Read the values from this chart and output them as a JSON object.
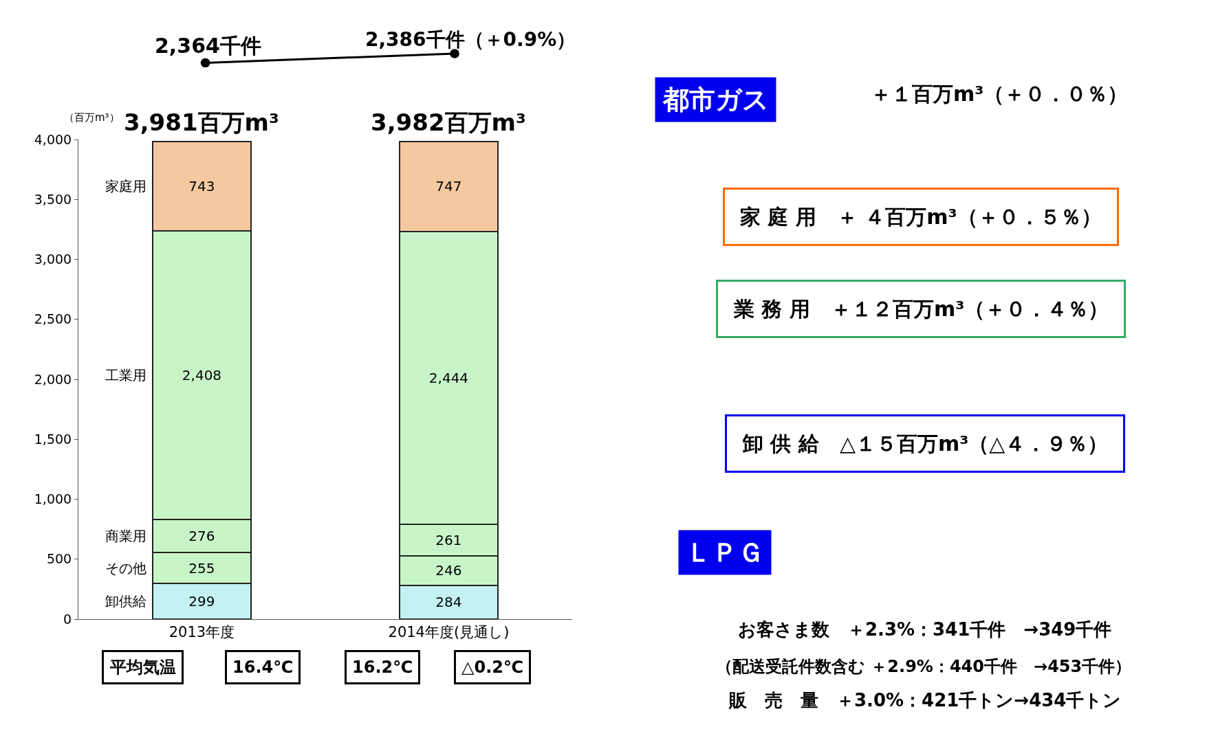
{
  "chart_data": {
    "type": "bar",
    "stacked": true,
    "categories": [
      "2013年度",
      "2014年度(見通し)"
    ],
    "series": [
      {
        "name": "卸供給",
        "color": "#c4f2f2",
        "values": [
          299,
          284
        ]
      },
      {
        "name": "その他",
        "color": "#c8f5c8",
        "values": [
          255,
          246
        ]
      },
      {
        "name": "商業用",
        "color": "#c8f5c8",
        "values": [
          276,
          261
        ]
      },
      {
        "name": "工業用",
        "color": "#c8f5c8",
        "values": [
          2408,
          2444
        ],
        "value_labels": [
          "2,408",
          "2,444"
        ]
      },
      {
        "name": "家庭用",
        "color": "#f5c9a0",
        "values": [
          743,
          747
        ]
      }
    ],
    "data_labels": true,
    "totals": [
      "3,981百万m³",
      "3,982百万m³"
    ],
    "ylabel": "（百万m³）",
    "ylim": [
      0,
      4000
    ],
    "yticks": [
      0,
      500,
      {
        "value": 1000,
        "label": "1,000"
      },
      {
        "value": 1500,
        "label": "1,500"
      },
      {
        "value": 2000,
        "label": "2,000"
      },
      {
        "value": 2500,
        "label": "2,500"
      },
      {
        "value": 3000,
        "label": "3,000"
      },
      {
        "value": 3500,
        "label": "3,500"
      },
      {
        "value": 4000,
        "label": "4,000"
      }
    ],
    "legend": false,
    "annotations": [
      "2,364千件",
      "2,386千件（＋0.9%）",
      "都市ガス",
      "＋１百万m³（＋０．０％）",
      "家 庭 用　＋ ４百万m³（＋０．５％）",
      "業 務 用　＋１２百万m³（＋０．４％）",
      "卸 供 給　△１５百万m³（△４．９％）",
      "ＬＰＧ",
      "お客さま数　＋2.3%：341千件　→349千件",
      "（配送受託件数含む ＋2.9%：440千件　→453千件）",
      "販　売　量　＋3.0%：421千トン→434千トン",
      "平均気温",
      "16.4℃",
      "16.2℃",
      "△0.2℃"
    ]
  }
}
